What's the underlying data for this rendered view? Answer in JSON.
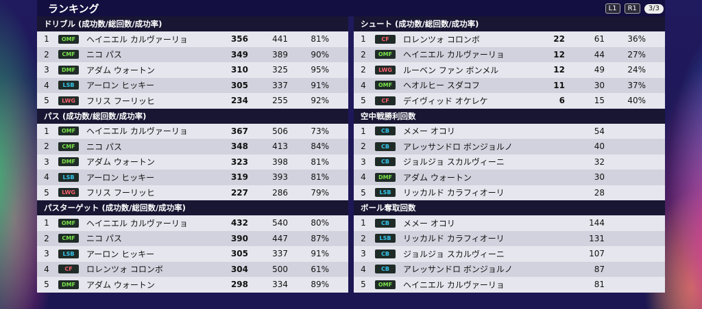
{
  "screen_title": "ランキング",
  "hud": {
    "l1": "L1",
    "r1": "R1",
    "page": "3/3"
  },
  "position_colors": {
    "OMF": "#7be34b",
    "CMF": "#7be34b",
    "DMF": "#7be34b",
    "CF": "#ff5f6e",
    "LWG": "#ff5f6e",
    "LSB": "#35c8f0",
    "CB": "#35c8f0"
  },
  "sections": [
    {
      "title": "ドリブル (成功数/総回数/成功率)",
      "rows": [
        {
          "rank": "1",
          "pos": "OMF",
          "name": "ヘイニエル カルヴァーリョ",
          "v1": "356",
          "v2": "441",
          "v3": "81%"
        },
        {
          "rank": "2",
          "pos": "CMF",
          "name": "ニコ パス",
          "v1": "349",
          "v2": "389",
          "v3": "90%"
        },
        {
          "rank": "3",
          "pos": "DMF",
          "name": "アダム ウォートン",
          "v1": "310",
          "v2": "325",
          "v3": "95%"
        },
        {
          "rank": "4",
          "pos": "LSB",
          "name": "アーロン ヒッキー",
          "v1": "305",
          "v2": "337",
          "v3": "91%"
        },
        {
          "rank": "5",
          "pos": "LWG",
          "name": "フリス フーリッヒ",
          "v1": "234",
          "v2": "255",
          "v3": "92%"
        }
      ]
    },
    {
      "title": "パス (成功数/総回数/成功率)",
      "rows": [
        {
          "rank": "1",
          "pos": "OMF",
          "name": "ヘイニエル カルヴァーリョ",
          "v1": "367",
          "v2": "506",
          "v3": "73%"
        },
        {
          "rank": "2",
          "pos": "CMF",
          "name": "ニコ パス",
          "v1": "348",
          "v2": "413",
          "v3": "84%"
        },
        {
          "rank": "3",
          "pos": "DMF",
          "name": "アダム ウォートン",
          "v1": "323",
          "v2": "398",
          "v3": "81%"
        },
        {
          "rank": "4",
          "pos": "LSB",
          "name": "アーロン ヒッキー",
          "v1": "319",
          "v2": "393",
          "v3": "81%"
        },
        {
          "rank": "5",
          "pos": "LWG",
          "name": "フリス フーリッヒ",
          "v1": "227",
          "v2": "286",
          "v3": "79%"
        }
      ]
    },
    {
      "title": "パスターゲット (成功数/総回数/成功率)",
      "rows": [
        {
          "rank": "1",
          "pos": "OMF",
          "name": "ヘイニエル カルヴァーリョ",
          "v1": "432",
          "v2": "540",
          "v3": "80%"
        },
        {
          "rank": "2",
          "pos": "CMF",
          "name": "ニコ パス",
          "v1": "390",
          "v2": "447",
          "v3": "87%"
        },
        {
          "rank": "3",
          "pos": "LSB",
          "name": "アーロン ヒッキー",
          "v1": "305",
          "v2": "337",
          "v3": "91%"
        },
        {
          "rank": "4",
          "pos": "CF",
          "name": "ロレンツォ コロンボ",
          "v1": "304",
          "v2": "500",
          "v3": "61%"
        },
        {
          "rank": "5",
          "pos": "DMF",
          "name": "アダム ウォートン",
          "v1": "298",
          "v2": "334",
          "v3": "89%"
        }
      ]
    },
    {
      "title": "シュート (成功数/総回数/成功率)",
      "rows": [
        {
          "rank": "1",
          "pos": "CF",
          "name": "ロレンツォ コロンボ",
          "v1": "22",
          "v2": "61",
          "v3": "36%"
        },
        {
          "rank": "2",
          "pos": "OMF",
          "name": "ヘイニエル カルヴァーリョ",
          "v1": "12",
          "v2": "44",
          "v3": "27%"
        },
        {
          "rank": "2",
          "pos": "LWG",
          "name": "ルーベン ファン ボンメル",
          "v1": "12",
          "v2": "49",
          "v3": "24%"
        },
        {
          "rank": "4",
          "pos": "OMF",
          "name": "ヘオルヒー スダコフ",
          "v1": "11",
          "v2": "30",
          "v3": "37%"
        },
        {
          "rank": "5",
          "pos": "CF",
          "name": "デイヴィッド オケレケ",
          "v1": "6",
          "v2": "15",
          "v3": "40%"
        }
      ]
    },
    {
      "title": "空中戦勝利回数",
      "rows": [
        {
          "rank": "1",
          "pos": "CB",
          "name": "メメー オコリ",
          "value": "54"
        },
        {
          "rank": "2",
          "pos": "CB",
          "name": "アレッサンドロ ボンジョルノ",
          "value": "40"
        },
        {
          "rank": "3",
          "pos": "CB",
          "name": "ジョルジョ スカルヴィーニ",
          "value": "32"
        },
        {
          "rank": "4",
          "pos": "DMF",
          "name": "アダム ウォートン",
          "value": "30"
        },
        {
          "rank": "5",
          "pos": "LSB",
          "name": "リッカルド カラフィオーリ",
          "value": "28"
        }
      ]
    },
    {
      "title": "ボール奪取回数",
      "rows": [
        {
          "rank": "1",
          "pos": "CB",
          "name": "メメー オコリ",
          "value": "144"
        },
        {
          "rank": "2",
          "pos": "LSB",
          "name": "リッカルド カラフィオーリ",
          "value": "131"
        },
        {
          "rank": "3",
          "pos": "CB",
          "name": "ジョルジョ スカルヴィーニ",
          "value": "107"
        },
        {
          "rank": "4",
          "pos": "CB",
          "name": "アレッサンドロ ボンジョルノ",
          "value": "87"
        },
        {
          "rank": "5",
          "pos": "OMF",
          "name": "ヘイニエル カルヴァーリョ",
          "value": "81"
        }
      ]
    }
  ]
}
